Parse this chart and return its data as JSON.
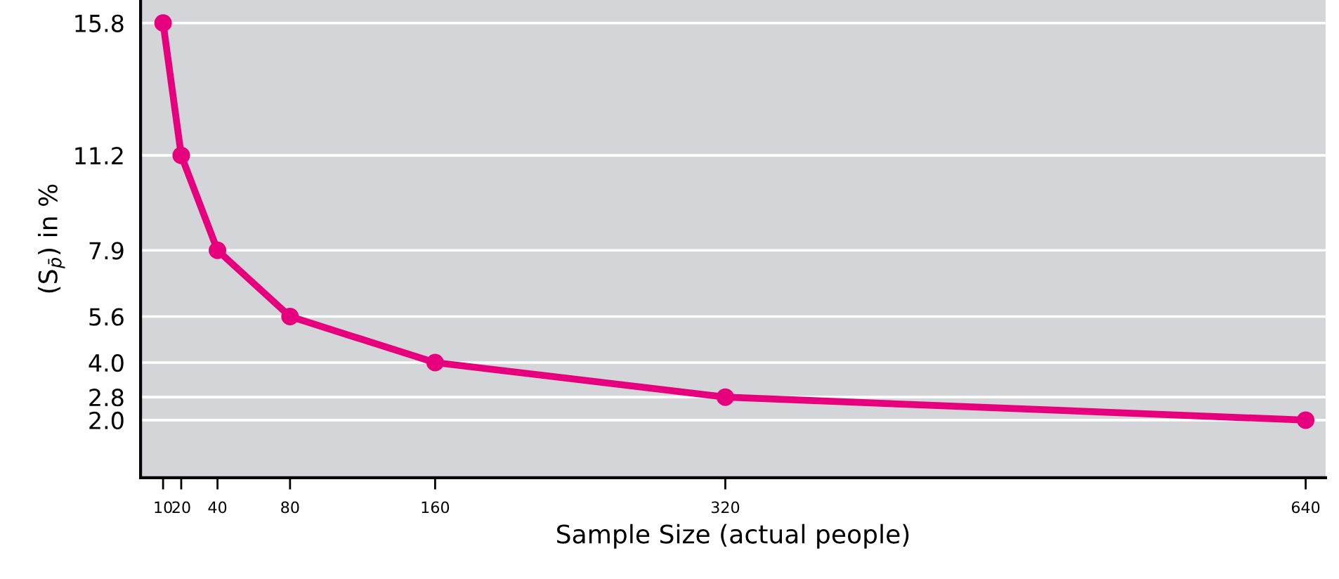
{
  "chart_data": {
    "type": "line",
    "xlabel": "Sample Size (actual people)",
    "ylabel": "(S$_{p̄}$) in %",
    "x": [
      10,
      20,
      40,
      80,
      160,
      320,
      640
    ],
    "series": [
      {
        "color": "#e6007e",
        "values": [
          15.8,
          11.2,
          7.9,
          5.6,
          4.0,
          2.8,
          2.0
        ]
      }
    ],
    "xlim": [
      -2.4,
      651
    ],
    "ylim": [
      0,
      16.6
    ],
    "xticks": [
      10,
      20,
      40,
      80,
      160,
      320,
      640
    ],
    "yticks": [
      {
        "value": 2.0,
        "label": "2.0"
      },
      2.8,
      {
        "value": 4.0,
        "label": "4.0"
      },
      5.6,
      7.9,
      11.2,
      15.8
    ],
    "grid": "y",
    "marker": "circle",
    "line_style": "solid"
  }
}
